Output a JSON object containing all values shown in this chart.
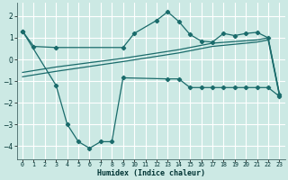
{
  "xlabel": "Humidex (Indice chaleur)",
  "bg_color": "#cce9e4",
  "grid_color": "#ffffff",
  "line_color": "#1a6b6b",
  "xlim": [
    -0.5,
    23.5
  ],
  "ylim": [
    -4.6,
    2.6
  ],
  "yticks": [
    -4,
    -3,
    -2,
    -1,
    0,
    1,
    2
  ],
  "xticks": [
    0,
    1,
    2,
    3,
    4,
    5,
    6,
    7,
    8,
    9,
    10,
    11,
    12,
    13,
    14,
    15,
    16,
    17,
    18,
    19,
    20,
    21,
    22,
    23
  ],
  "series1_x": [
    0,
    1,
    3,
    9,
    10,
    12,
    13,
    14,
    15,
    16,
    17,
    18,
    19,
    20,
    21,
    22,
    23
  ],
  "series1_y": [
    1.3,
    0.6,
    0.55,
    0.55,
    1.2,
    1.8,
    2.2,
    1.75,
    1.15,
    0.85,
    0.8,
    1.2,
    1.1,
    1.2,
    1.25,
    1.0,
    -1.6
  ],
  "series2_x": [
    0,
    3,
    4,
    5,
    6,
    7,
    8,
    9,
    13,
    14,
    15,
    16,
    17,
    18,
    19,
    20,
    21,
    22,
    23
  ],
  "series2_y": [
    1.3,
    -1.2,
    -3.0,
    -3.8,
    -4.1,
    -3.8,
    -3.8,
    -0.85,
    -0.9,
    -0.9,
    -1.3,
    -1.3,
    -1.3,
    -1.3,
    -1.3,
    -1.3,
    -1.3,
    -1.3,
    -1.7
  ],
  "series3_x": [
    0,
    3,
    9,
    14,
    17,
    21,
    22,
    23
  ],
  "series3_y": [
    -0.6,
    -0.35,
    0.05,
    0.45,
    0.75,
    0.9,
    1.0,
    -1.55
  ],
  "series4_x": [
    0,
    3,
    9,
    14,
    17,
    21,
    22,
    23
  ],
  "series4_y": [
    -0.8,
    -0.55,
    -0.1,
    0.3,
    0.6,
    0.8,
    0.9,
    -1.65
  ]
}
